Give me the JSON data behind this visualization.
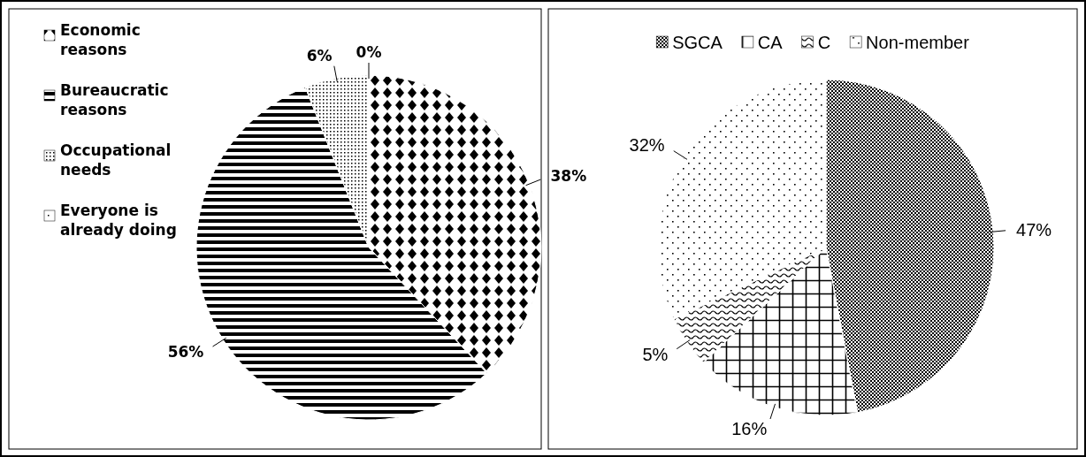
{
  "chart_data": [
    {
      "type": "pie",
      "categories": [
        "Economic reasons",
        "Bureaucratic reasons",
        "Occupational needs",
        "Everyone is already doing"
      ],
      "values": [
        38,
        56,
        6,
        0
      ],
      "colors": [
        "#ffffff",
        "#ffffff",
        "#ffffff",
        "#ffffff"
      ],
      "value_labels": [
        "38%",
        "56%",
        "6%",
        "0%"
      ],
      "legend": "left"
    },
    {
      "type": "pie",
      "categories": [
        "SGCA",
        "CA",
        "C",
        "Non-member"
      ],
      "values": [
        47,
        16,
        5,
        32
      ],
      "colors": [
        "#ffffff",
        "#ffffff",
        "#ffffff",
        "#ffffff"
      ],
      "value_labels": [
        "47%",
        "16%",
        "5%",
        "32%"
      ],
      "legend": "top"
    }
  ]
}
